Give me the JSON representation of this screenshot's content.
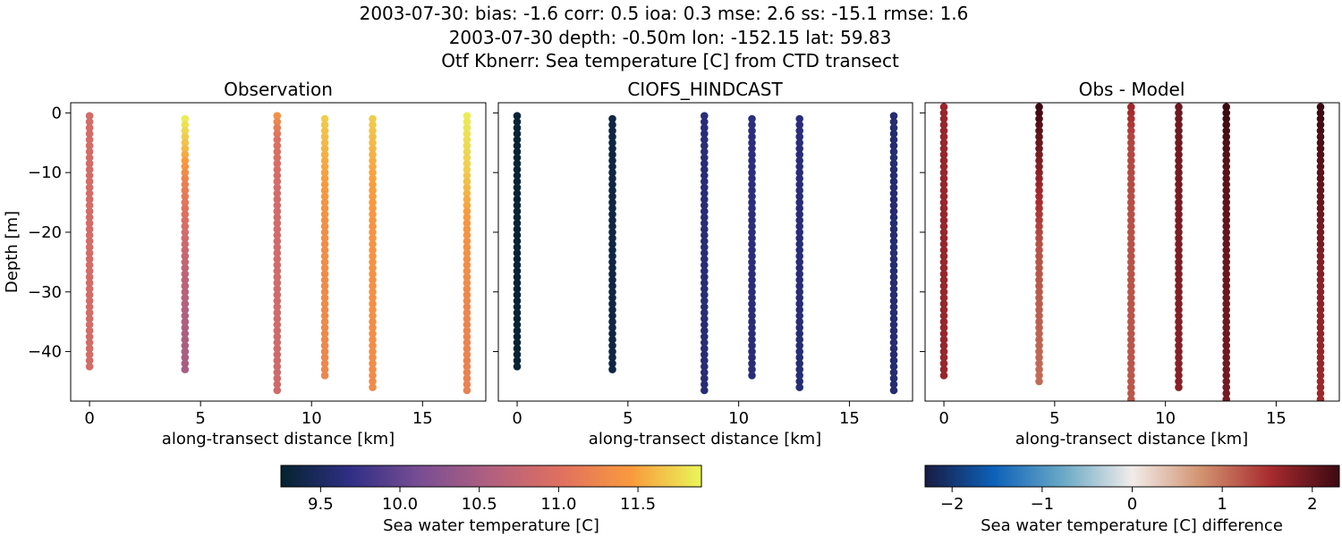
{
  "figure": {
    "title_lines": [
      "2003-07-30: bias: -1.6  corr: 0.5  ioa: 0.3  mse: 2.6  ss: -15.1  rmse: 1.6",
      "2003-07-30 depth: -0.50m lon: -152.15 lat: 59.83",
      "Otf Kbnerr: Sea temperature [C] from CTD transect"
    ]
  },
  "chart_data": [
    {
      "type": "scatter",
      "title": "Observation",
      "xlabel": "along-transect distance [km]",
      "ylabel": "Depth [m]",
      "xlim": [
        -0.85,
        17.85
      ],
      "ylim": [
        -48.3,
        1.7
      ],
      "xticks": [
        0,
        5,
        10,
        15
      ],
      "yticks": [
        0,
        -10,
        -20,
        -30,
        -40
      ],
      "colormap": "thermal",
      "clim": [
        9.25,
        11.9
      ],
      "stations": [
        {
          "x": 0.0,
          "top": -0.5,
          "bottom": -42,
          "profile": [
            [
              0,
              10.9
            ],
            [
              1,
              10.9
            ]
          ]
        },
        {
          "x": 4.3,
          "top": -1.0,
          "bottom": -43,
          "profile": [
            [
              0,
              11.85
            ],
            [
              0.12,
              11.6
            ],
            [
              0.25,
              11.2
            ],
            [
              0.45,
              10.9
            ],
            [
              0.6,
              10.7
            ],
            [
              0.8,
              10.55
            ],
            [
              1,
              10.5
            ]
          ]
        },
        {
          "x": 8.45,
          "top": -0.5,
          "bottom": -46,
          "profile": [
            [
              0,
              11.35
            ],
            [
              0.08,
              11.0
            ],
            [
              0.25,
              10.9
            ],
            [
              1,
              10.85
            ]
          ]
        },
        {
          "x": 10.6,
          "top": -1.0,
          "bottom": -44,
          "profile": [
            [
              0,
              11.7
            ],
            [
              0.2,
              11.5
            ],
            [
              0.4,
              11.35
            ],
            [
              1,
              11.25
            ]
          ]
        },
        {
          "x": 12.75,
          "top": -1.0,
          "bottom": -46,
          "profile": [
            [
              0,
              11.7
            ],
            [
              0.2,
              11.5
            ],
            [
              0.4,
              11.4
            ],
            [
              1,
              11.3
            ]
          ]
        },
        {
          "x": 17.0,
          "top": -0.5,
          "bottom": -46,
          "profile": [
            [
              0,
              11.85
            ],
            [
              0.2,
              11.7
            ],
            [
              0.4,
              11.4
            ],
            [
              0.7,
              11.25
            ],
            [
              1,
              11.2
            ]
          ]
        }
      ],
      "point_spacing_m": 1.0
    },
    {
      "type": "scatter",
      "title": "CIOFS_HINDCAST",
      "xlabel": "along-transect distance [km]",
      "xlim": [
        -0.85,
        17.85
      ],
      "ylim": [
        -48.3,
        1.7
      ],
      "xticks": [
        0,
        5,
        10,
        15
      ],
      "colormap": "thermal",
      "clim": [
        9.25,
        11.9
      ],
      "stations": [
        {
          "x": 0.0,
          "top": -0.5,
          "bottom": -42,
          "profile": [
            [
              0,
              9.28
            ],
            [
              1,
              9.28
            ]
          ]
        },
        {
          "x": 4.3,
          "top": -1.0,
          "bottom": -43,
          "profile": [
            [
              0,
              9.35
            ],
            [
              1,
              9.35
            ]
          ]
        },
        {
          "x": 8.45,
          "top": -0.5,
          "bottom": -46,
          "profile": [
            [
              0,
              9.62
            ],
            [
              1,
              9.6
            ]
          ]
        },
        {
          "x": 10.6,
          "top": -1.0,
          "bottom": -44,
          "profile": [
            [
              0,
              9.65
            ],
            [
              1,
              9.62
            ]
          ]
        },
        {
          "x": 12.75,
          "top": -1.0,
          "bottom": -46,
          "profile": [
            [
              0,
              9.63
            ],
            [
              1,
              9.6
            ]
          ]
        },
        {
          "x": 17.0,
          "top": -0.5,
          "bottom": -46,
          "profile": [
            [
              0,
              9.58
            ],
            [
              1,
              9.58
            ]
          ]
        }
      ],
      "point_spacing_m": 1.0
    },
    {
      "type": "scatter",
      "title": "Obs - Model",
      "xlabel": "along-transect distance [km]",
      "xlim": [
        -0.85,
        17.85
      ],
      "ylim": [
        -48.3,
        1.7
      ],
      "xticks": [
        0,
        5,
        10,
        15
      ],
      "colormap": "balance",
      "clim": [
        -2.3,
        2.3
      ],
      "stations": [
        {
          "x": 0.0,
          "top": 1.0,
          "bottom": -44,
          "profile": [
            [
              0,
              1.65
            ],
            [
              1,
              1.65
            ]
          ]
        },
        {
          "x": 4.3,
          "top": 1.0,
          "bottom": -45,
          "profile": [
            [
              0,
              2.3
            ],
            [
              0.12,
              2.0
            ],
            [
              0.3,
              1.6
            ],
            [
              0.5,
              1.25
            ],
            [
              0.75,
              1.15
            ],
            [
              1,
              1.05
            ]
          ]
        },
        {
          "x": 8.45,
          "top": 1.0,
          "bottom": -48,
          "profile": [
            [
              0,
              1.6
            ],
            [
              0.1,
              1.35
            ],
            [
              0.4,
              1.25
            ],
            [
              1,
              1.2
            ]
          ]
        },
        {
          "x": 10.6,
          "top": 1.0,
          "bottom": -46,
          "profile": [
            [
              0,
              1.95
            ],
            [
              0.4,
              1.85
            ],
            [
              1,
              1.75
            ]
          ]
        },
        {
          "x": 12.75,
          "top": 1.0,
          "bottom": -48,
          "profile": [
            [
              0,
              2.3
            ],
            [
              0.2,
              2.1
            ],
            [
              0.5,
              2.0
            ],
            [
              1,
              1.9
            ]
          ]
        },
        {
          "x": 17.0,
          "top": 1.0,
          "bottom": -48,
          "profile": [
            [
              0,
              2.3
            ],
            [
              0.3,
              2.0
            ],
            [
              0.6,
              1.75
            ],
            [
              1,
              1.6
            ]
          ]
        }
      ],
      "point_spacing_m": 1.0
    }
  ],
  "colorbars": [
    {
      "label": "Sea water temperature [C]",
      "colormap": "thermal",
      "range": [
        9.25,
        11.9
      ],
      "ticks": [
        9.5,
        10.0,
        10.5,
        11.0,
        11.5
      ],
      "tick_labels": [
        "9.5",
        "10.0",
        "10.5",
        "11.0",
        "11.5"
      ]
    },
    {
      "label": "Sea water temperature [C] difference",
      "colormap": "balance",
      "range": [
        -2.3,
        2.3
      ],
      "ticks": [
        -2,
        -1,
        0,
        1,
        2
      ],
      "tick_labels": [
        "−2",
        "−1",
        "0",
        "1",
        "2"
      ]
    }
  ],
  "colors": {
    "thermal": [
      "#04232f",
      "#302f86",
      "#7a4e93",
      "#b2607f",
      "#e0705f",
      "#f99a3d",
      "#e9f659"
    ],
    "balance": [
      "#181c43",
      "#0d61b9",
      "#6aa9c6",
      "#f1ecea",
      "#d29270",
      "#a82b2f",
      "#3c0912"
    ]
  }
}
